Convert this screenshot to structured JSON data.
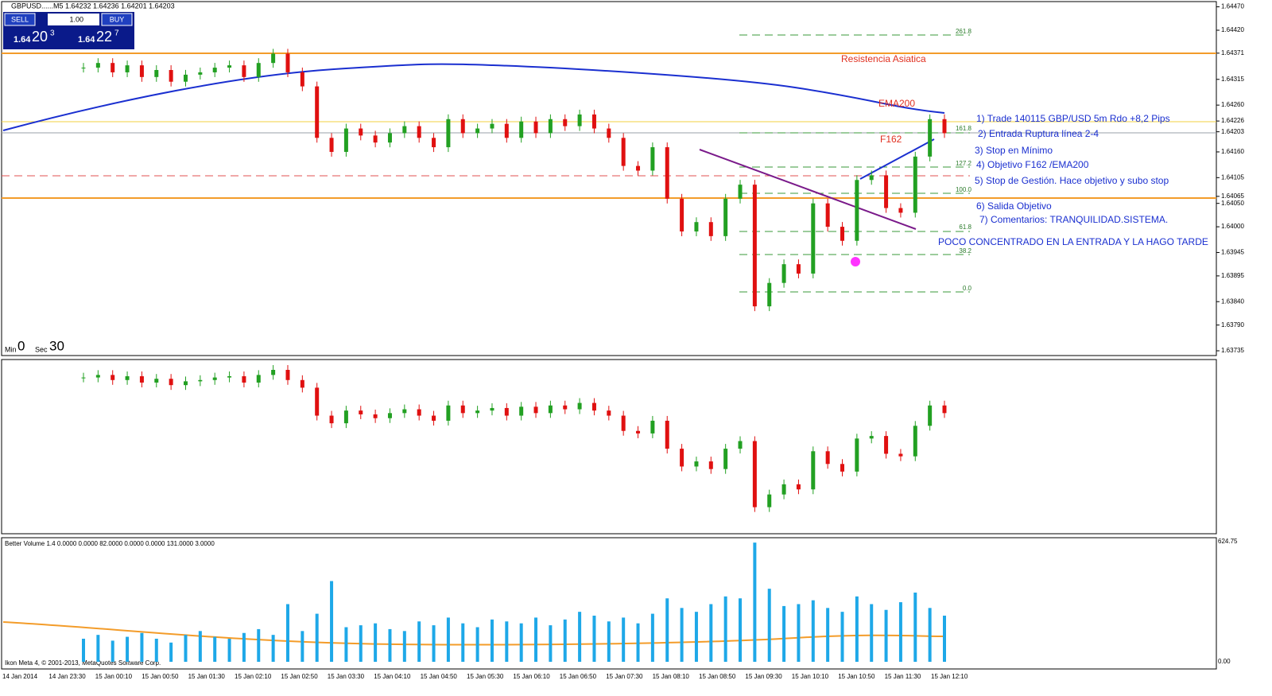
{
  "window": {
    "symbol_line": "GBPUSD......M5  1.64232 1.64236 1.64201 1.64203"
  },
  "trade_panel": {
    "sell": "SELL",
    "lot": "1.00",
    "buy": "BUY",
    "bid_big": "1.64",
    "bid_main": "20",
    "bid_small": "3",
    "ask_big": "1.64",
    "ask_main": "22",
    "ask_small": "7"
  },
  "timer": {
    "min_label": "Min",
    "min": "0",
    "sec_label": "Sec",
    "sec": "30"
  },
  "price_axis": {
    "ticks": [
      {
        "value": 1.6447,
        "label": "1.64470"
      },
      {
        "value": 1.6442,
        "label": "1.64420"
      },
      {
        "value": 1.64371,
        "label": "1.64371"
      },
      {
        "value": 1.64315,
        "label": "1.64315"
      },
      {
        "value": 1.6426,
        "label": "1.64260"
      },
      {
        "value": 1.64226,
        "label": "1.64226"
      },
      {
        "value": 1.64203,
        "label": "1.64203"
      },
      {
        "value": 1.6416,
        "label": "1.64160"
      },
      {
        "value": 1.64105,
        "label": "1.64105"
      },
      {
        "value": 1.64065,
        "label": "1.64065"
      },
      {
        "value": 1.6405,
        "label": "1.64050"
      },
      {
        "value": 1.64,
        "label": "1.64000"
      },
      {
        "value": 1.63945,
        "label": "1.63945"
      },
      {
        "value": 1.63895,
        "label": "1.63895"
      },
      {
        "value": 1.6384,
        "label": "1.63840"
      },
      {
        "value": 1.6379,
        "label": "1.63790"
      },
      {
        "value": 1.63735,
        "label": "1.63735"
      }
    ]
  },
  "closes": [
    1.6434,
    1.6435,
    1.6433,
    1.64345,
    1.6432,
    1.64335,
    1.6431,
    1.64325,
    1.6433,
    1.6434,
    1.64345,
    1.6432,
    1.6435,
    1.6437,
    1.6433,
    1.643,
    1.6419,
    1.6416,
    1.6421,
    1.64195,
    1.6418,
    1.642,
    1.64215,
    1.6419,
    1.6417,
    1.6423,
    1.642,
    1.6421,
    1.6422,
    1.6419,
    1.64225,
    1.642,
    1.6423,
    1.64215,
    1.6424,
    1.6421,
    1.6419,
    1.6413,
    1.6412,
    1.6417,
    1.6406,
    1.6399,
    1.6401,
    1.6398,
    1.6406,
    1.6409,
    1.6383,
    1.6388,
    1.6392,
    1.639,
    1.6405,
    1.64,
    1.6397,
    1.641,
    1.6411,
    1.6404,
    1.6403,
    1.6415,
    1.6423,
    1.642
  ],
  "bull_color": "#22a022",
  "bear_color": "#e01010",
  "annotations": {
    "resistance": "Resistencia Asiatica",
    "ema": "EMA200",
    "f162": "F162",
    "notes": [
      "1) Trade 140115 GBP/USD 5m Rdo +8,2 Pips",
      "2) Entrada Ruptura línea 2-4",
      "3) Stop en Mínimo",
      "4) Objetivo F162 /EMA200",
      "5) Stop de Gestión. Hace objetivo y subo stop",
      "6) Salida Objetivo",
      "7) Comentarios: TRANQUILIDAD.SISTEMA."
    ],
    "remark": "POCO CONCENTRADO EN LA ENTRADA Y LA HAGO TARDE"
  },
  "fibo": [
    "261.8",
    "161.8",
    "127.2",
    "100.0",
    "61.8",
    "38.2",
    "0.0"
  ],
  "fibo_small": "61.8",
  "volume": {
    "header": "Better Volume 1.4 0.0000 0.0000 82.0000 0.0000 0.0000 131.0000 3.0000",
    "max": 624.75,
    "max_label": "624.75",
    "zero_label": "0.00",
    "color": "#1ea8e8",
    "values": [
      120,
      140,
      110,
      130,
      150,
      120,
      100,
      140,
      160,
      130,
      120,
      150,
      170,
      140,
      300,
      160,
      250,
      420,
      180,
      190,
      200,
      170,
      160,
      210,
      190,
      230,
      200,
      180,
      220,
      210,
      200,
      230,
      190,
      220,
      260,
      240,
      210,
      230,
      200,
      250,
      330,
      280,
      260,
      300,
      340,
      330,
      620,
      380,
      290,
      300,
      320,
      280,
      260,
      340,
      300,
      270,
      310,
      360,
      280,
      240
    ]
  },
  "footer": "Ikon Meta 4, © 2001-2013, MetaQuotes Software Corp.",
  "time_axis": [
    "14 Jan 2014",
    "14 Jan 23:30",
    "15 Jan 00:10",
    "15 Jan 00:50",
    "15 Jan 01:30",
    "15 Jan 02:10",
    "15 Jan 02:50",
    "15 Jan 03:30",
    "15 Jan 04:10",
    "15 Jan 04:50",
    "15 Jan 05:30",
    "15 Jan 06:10",
    "15 Jan 06:50",
    "15 Jan 07:30",
    "15 Jan 08:10",
    "15 Jan 08:50",
    "15 Jan 09:30",
    "15 Jan 10:10",
    "15 Jan 10:50",
    "15 Jan 11:30",
    "15 Jan 12:10"
  ]
}
